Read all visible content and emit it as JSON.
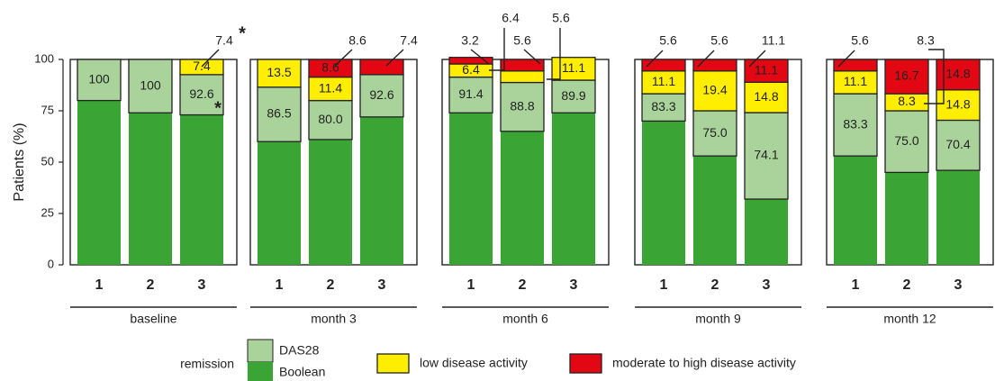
{
  "chart_data": {
    "type": "bar",
    "stacked": true,
    "ylabel": "Patients (%)",
    "ylim": [
      0,
      100
    ],
    "yticks": [
      "0",
      "25",
      "50",
      "75",
      "100"
    ],
    "colors": {
      "das28": "#a9d39a",
      "boolean": "#3aa535",
      "low": "#ffee00",
      "moderate_high": "#e30613",
      "border": "#222222"
    },
    "panels": [
      {
        "label": "baseline",
        "bars": [
          {
            "category": "1",
            "boolean": 80,
            "das28": 20,
            "low": 0,
            "moderate_high": 0,
            "remission_label": "100",
            "low_label": "",
            "mh_label": ""
          },
          {
            "category": "2",
            "boolean": 74,
            "das28": 26,
            "low": 0,
            "moderate_high": 0,
            "remission_label": "100",
            "low_label": "",
            "mh_label": ""
          },
          {
            "category": "3",
            "boolean": 73,
            "das28": 19.6,
            "low": 7.4,
            "moderate_high": 0,
            "remission_label": "92.6",
            "low_label": "7.4",
            "mh_label": ""
          }
        ]
      },
      {
        "label": "month 3",
        "bars": [
          {
            "category": "1",
            "boolean": 60,
            "das28": 26.5,
            "low": 13.5,
            "moderate_high": 0,
            "remission_label": "86.5",
            "low_label": "13.5",
            "mh_label": ""
          },
          {
            "category": "2",
            "boolean": 61,
            "das28": 19,
            "low": 11.4,
            "moderate_high": 8.6,
            "remission_label": "80.0",
            "low_label": "11.4",
            "mh_label": "8.6"
          },
          {
            "category": "3",
            "boolean": 72,
            "das28": 20.6,
            "low": 0,
            "moderate_high": 7.4,
            "remission_label": "92.6",
            "low_label": "",
            "mh_label": "7.4"
          }
        ]
      },
      {
        "label": "month 6",
        "bars": [
          {
            "category": "1",
            "boolean": 74,
            "das28": 17.4,
            "low": 6.4,
            "moderate_high": 3.2,
            "remission_label": "91.4",
            "low_label": "6.4",
            "mh_label": "3.2"
          },
          {
            "category": "2",
            "boolean": 65,
            "das28": 23.8,
            "low": 5.6,
            "moderate_high": 5.6,
            "remission_label": "88.8",
            "low_label": "5.6",
            "mh_label": "5.6"
          },
          {
            "category": "3",
            "boolean": 74,
            "das28": 15.9,
            "low": 11.1,
            "moderate_high": 0,
            "remission_label": "89.9",
            "low_label": "11.1",
            "mh_label": ""
          }
        ]
      },
      {
        "label": "month 9",
        "bars": [
          {
            "category": "1",
            "boolean": 70,
            "das28": 13.3,
            "low": 11.1,
            "moderate_high": 5.6,
            "remission_label": "83.3",
            "low_label": "11.1",
            "mh_label": "5.6"
          },
          {
            "category": "2",
            "boolean": 53,
            "das28": 22,
            "low": 19.4,
            "moderate_high": 5.6,
            "remission_label": "75.0",
            "low_label": "19.4",
            "mh_label": "5.6"
          },
          {
            "category": "3",
            "boolean": 32,
            "das28": 42.1,
            "low": 14.8,
            "moderate_high": 11.1,
            "remission_label": "74.1",
            "low_label": "14.8",
            "mh_label": "11.1"
          }
        ]
      },
      {
        "label": "month 12",
        "bars": [
          {
            "category": "1",
            "boolean": 53,
            "das28": 30.3,
            "low": 11.1,
            "moderate_high": 5.6,
            "remission_label": "83.3",
            "low_label": "11.1",
            "mh_label": "5.6"
          },
          {
            "category": "2",
            "boolean": 45,
            "das28": 30,
            "low": 8.3,
            "moderate_high": 16.7,
            "remission_label": "75.0",
            "low_label": "8.3",
            "mh_label": "16.7"
          },
          {
            "category": "3",
            "boolean": 46,
            "das28": 24.4,
            "low": 14.8,
            "moderate_high": 14.8,
            "remission_label": "70.4",
            "low_label": "14.8",
            "mh_label": "14.8"
          }
        ]
      }
    ],
    "annotations": [
      "*",
      "*"
    ],
    "legend": {
      "group_label": "remission",
      "items": [
        {
          "key": "das28",
          "label": "DAS28"
        },
        {
          "key": "boolean",
          "label": "Boolean"
        },
        {
          "key": "low",
          "label": "low disease activity"
        },
        {
          "key": "moderate_high",
          "label": "moderate to high disease activity"
        }
      ]
    }
  }
}
